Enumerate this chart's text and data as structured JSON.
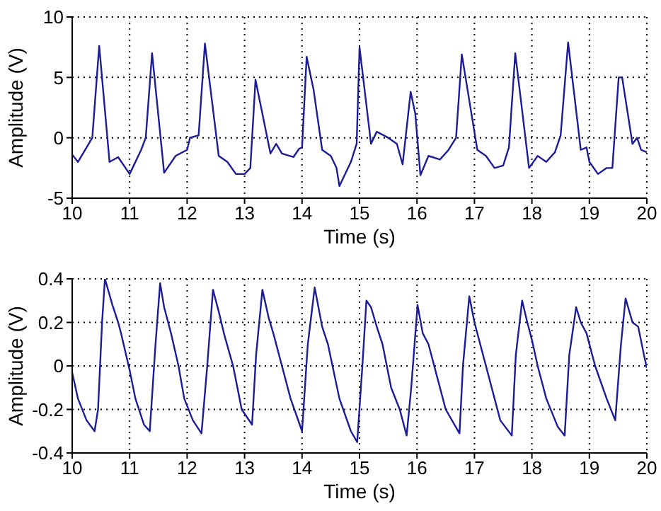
{
  "chart_data": [
    {
      "type": "line",
      "xlabel": "Time (s)",
      "ylabel": "Amplitude (V)",
      "color": "#1c1c96",
      "grid": true,
      "xlim": [
        10,
        20
      ],
      "ylim": [
        -5,
        10
      ],
      "xticks": [
        10,
        11,
        12,
        13,
        14,
        15,
        16,
        17,
        18,
        19,
        20
      ],
      "yticks": [
        -5,
        0,
        5,
        10
      ],
      "x": [
        10,
        10.1,
        10.25,
        10.35,
        10.47,
        10.65,
        10.8,
        11.0,
        11.2,
        11.28,
        11.39,
        11.6,
        11.8,
        12.0,
        12.05,
        12.2,
        12.31,
        12.55,
        12.7,
        12.85,
        13.0,
        13.1,
        13.19,
        13.45,
        13.55,
        13.65,
        13.85,
        13.95,
        14.0,
        14.08,
        14.2,
        14.35,
        14.5,
        14.6,
        14.65,
        14.85,
        14.95,
        15.0,
        15.2,
        15.3,
        15.5,
        15.65,
        15.75,
        15.89,
        15.97,
        16.06,
        16.2,
        16.4,
        16.55,
        16.68,
        16.78,
        17.05,
        17.2,
        17.35,
        17.5,
        17.6,
        17.71,
        17.95,
        18.1,
        18.25,
        18.4,
        18.5,
        18.63,
        18.85,
        18.95,
        19.0,
        19.15,
        19.3,
        19.4,
        19.51,
        19.57,
        19.75,
        19.83,
        19.9,
        20
      ],
      "values": [
        -1.4,
        -2,
        -0.8,
        0,
        7.6,
        -2,
        -1.6,
        -3,
        -1,
        0,
        7,
        -2.9,
        -1.5,
        -1,
        0,
        0.2,
        7.8,
        -1.5,
        -2,
        -3,
        -3,
        -2.5,
        4.8,
        -1.3,
        -0.5,
        -1.3,
        -1.6,
        -0.9,
        -0.8,
        6.7,
        4,
        -1,
        -1.5,
        -2.5,
        -4,
        -2,
        -0.5,
        7.5,
        -0.5,
        0.5,
        0,
        -0.5,
        -2.2,
        3.8,
        2,
        -3.1,
        -1.5,
        -1.8,
        -1,
        0,
        6.9,
        -1,
        -1.5,
        -2.5,
        -2.3,
        -0.8,
        7,
        -2.5,
        -1.5,
        -2,
        -1.2,
        0.2,
        7.9,
        -1,
        -0.8,
        -2,
        -3,
        -2.5,
        -2.5,
        5,
        5,
        -0.5,
        0,
        -1,
        -1.2
      ]
    },
    {
      "type": "line",
      "xlabel": "Time (s)",
      "ylabel": "Amplitude (V)",
      "color": "#1c1c96",
      "grid": true,
      "xlim": [
        10,
        20
      ],
      "ylim": [
        -0.4,
        0.4
      ],
      "xticks": [
        10,
        11,
        12,
        13,
        14,
        15,
        16,
        17,
        18,
        19,
        20
      ],
      "yticks": [
        -0.4,
        -0.2,
        0,
        0.2,
        0.4
      ],
      "x": [
        10,
        10.1,
        10.25,
        10.39,
        10.45,
        10.52,
        10.57,
        10.7,
        10.8,
        10.85,
        11.0,
        11.1,
        11.25,
        11.35,
        11.45,
        11.53,
        11.6,
        11.72,
        11.85,
        11.95,
        12.1,
        12.25,
        12.35,
        12.45,
        12.55,
        12.65,
        12.8,
        12.95,
        13.13,
        13.2,
        13.31,
        13.42,
        13.5,
        13.65,
        13.8,
        14.0,
        14.1,
        14.22,
        14.35,
        14.45,
        14.65,
        14.85,
        14.96,
        15.05,
        15.12,
        15.2,
        15.3,
        15.4,
        15.55,
        15.7,
        15.82,
        15.9,
        16.01,
        16.1,
        16.2,
        16.35,
        16.5,
        16.74,
        16.8,
        16.91,
        17.0,
        17.1,
        17.3,
        17.45,
        17.65,
        17.72,
        17.83,
        17.92,
        18.0,
        18.1,
        18.25,
        18.45,
        18.57,
        18.65,
        18.77,
        18.85,
        18.95,
        19.1,
        19.3,
        19.45,
        19.55,
        19.63,
        19.75,
        19.85,
        19.95,
        20
      ],
      "values": [
        -0.03,
        -0.15,
        -0.25,
        -0.3,
        -0.2,
        0.2,
        0.4,
        0.28,
        0.2,
        0.15,
        -0.02,
        -0.15,
        -0.27,
        -0.3,
        0.1,
        0.38,
        0.27,
        0.15,
        0,
        -0.15,
        -0.25,
        -0.31,
        0,
        0.35,
        0.25,
        0.14,
        0,
        -0.2,
        -0.27,
        0.05,
        0.35,
        0.22,
        0.15,
        0,
        -0.15,
        -0.3,
        0.1,
        0.36,
        0.18,
        0.1,
        -0.15,
        -0.3,
        -0.35,
        0,
        0.3,
        0.27,
        0.18,
        0.1,
        -0.1,
        -0.2,
        -0.32,
        -0.1,
        0.28,
        0.15,
        0.1,
        -0.05,
        -0.2,
        -0.31,
        0,
        0.32,
        0.2,
        0.1,
        -0.1,
        -0.25,
        -0.32,
        0.05,
        0.3,
        0.2,
        0.12,
        0,
        -0.15,
        -0.28,
        -0.32,
        0.05,
        0.27,
        0.2,
        0.15,
        0,
        -0.15,
        -0.25,
        0.1,
        0.31,
        0.2,
        0.18,
        0.05,
        -0.01
      ]
    }
  ]
}
